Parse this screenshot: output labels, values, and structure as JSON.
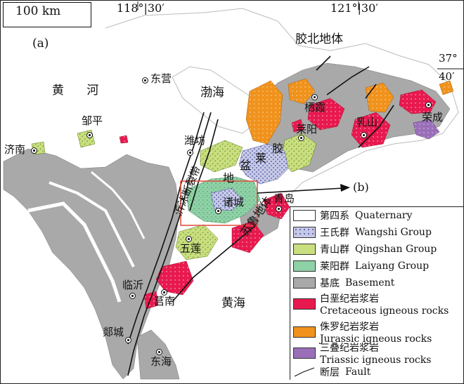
{
  "scale": {
    "label": "100 km"
  },
  "panel_label": "(a)",
  "longitudes": {
    "west": "118°|30′",
    "east": "121°|30′"
  },
  "latitude": {
    "line1": "37°",
    "line2": "40′"
  },
  "regions": {
    "jiaobei": "胶北地体",
    "bohai": "渤海",
    "huanghe": "黄      河",
    "huanghai": "黄海",
    "jiaolai_basin": [
      "莱",
      "胶",
      "盆",
      "地"
    ],
    "sulu": "苏鲁地体",
    "yishu_fault": "沂沭断裂带"
  },
  "arrow_label": "(b)",
  "cities": [
    {
      "name": "东营"
    },
    {
      "name": "邹平"
    },
    {
      "name": "济南"
    },
    {
      "name": "潍坊"
    },
    {
      "name": "栖霞"
    },
    {
      "name": "莱阳"
    },
    {
      "name": "乳山"
    },
    {
      "name": "荣成"
    },
    {
      "name": "青岛"
    },
    {
      "name": "诸城"
    },
    {
      "name": "五莲"
    },
    {
      "name": "临沂"
    },
    {
      "name": "莒南"
    },
    {
      "name": "郯城"
    },
    {
      "name": "东海"
    }
  ],
  "legend": [
    {
      "cn": "第四系",
      "en": "Quaternary"
    },
    {
      "cn": "王氏群",
      "en": "Wangshi Group"
    },
    {
      "cn": "青山群",
      "en": "Qingshan Group"
    },
    {
      "cn": "莱阳群",
      "en": "Laiyang Group"
    },
    {
      "cn": "基底",
      "en": "Basement"
    },
    {
      "cn": "白垩纪岩浆岩",
      "en": "Cretaceous igneous rocks"
    },
    {
      "cn": "侏罗纪岩浆岩",
      "en": "Jurassic igneous rocks"
    },
    {
      "cn": "三叠纪岩浆岩",
      "en": "Triassic igneous rocks"
    },
    {
      "cn": "断层",
      "en": "Fault"
    }
  ],
  "colors": {
    "basement": "#a9a9a9",
    "quaternary": "#ffffff",
    "wangshi": "#c6c9e6",
    "qingshan": "#c9df7f",
    "laiyang": "#8fd1a6",
    "cretaceous": "#e8194f",
    "jurassic": "#f0921c",
    "triassic": "#9a6fb8",
    "study_box": "#e0493a"
  }
}
